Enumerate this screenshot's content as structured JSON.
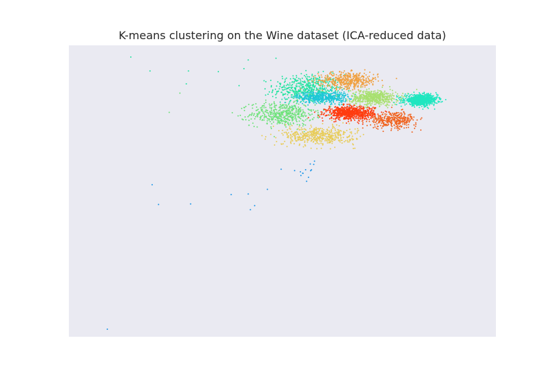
{
  "chart_data": {
    "type": "scatter",
    "title": "K-means clustering on the Wine dataset (ICA-reduced data)",
    "xlabel": "",
    "ylabel": "",
    "xlim": [
      -5.0,
      5.0
    ],
    "ylim": [
      -3.8,
      1.2
    ],
    "grid": false,
    "axes_visible": false,
    "background_color": "#eaeaf2",
    "clusters": [
      {
        "color": "#22e3a0",
        "center": [
          0.6,
          0.45
        ],
        "spread": [
          0.8,
          0.25
        ],
        "n": 520,
        "extra_points": [
          {
            "x": -3.55,
            "y": 1.0
          },
          {
            "x": -3.1,
            "y": 0.76
          },
          {
            "x": -2.2,
            "y": 0.76
          },
          {
            "x": -2.25,
            "y": 0.54
          },
          {
            "x": -1.5,
            "y": 0.75
          },
          {
            "x": -0.9,
            "y": 0.8
          },
          {
            "x": -0.8,
            "y": 0.95
          },
          {
            "x": -0.15,
            "y": 0.98
          }
        ]
      },
      {
        "color": "#6ee27a",
        "center": [
          0.0,
          0.02
        ],
        "spread": [
          0.75,
          0.2
        ],
        "n": 480,
        "extra_points": [
          {
            "x": -2.65,
            "y": 0.05
          },
          {
            "x": -2.4,
            "y": 0.38
          }
        ]
      },
      {
        "color": "#f0a040",
        "center": [
          1.55,
          0.6
        ],
        "spread": [
          0.7,
          0.14
        ],
        "n": 430,
        "extra_points": []
      },
      {
        "color": "#1ec6d8",
        "center": [
          0.95,
          0.31
        ],
        "spread": [
          0.6,
          0.1
        ],
        "n": 450,
        "extra_points": []
      },
      {
        "color": "#a8e070",
        "center": [
          2.15,
          0.3
        ],
        "spread": [
          0.55,
          0.13
        ],
        "n": 560,
        "extra_points": []
      },
      {
        "color": "#20e6c0",
        "center": [
          3.25,
          0.26
        ],
        "spread": [
          0.38,
          0.09
        ],
        "n": 820,
        "extra_points": []
      },
      {
        "color": "#ff3c10",
        "center": [
          1.6,
          0.04
        ],
        "spread": [
          0.55,
          0.11
        ],
        "n": 760,
        "extra_points": []
      },
      {
        "color": "#f06420",
        "center": [
          2.6,
          -0.08
        ],
        "spread": [
          0.55,
          0.14
        ],
        "n": 360,
        "extra_points": []
      },
      {
        "color": "#e8cc58",
        "center": [
          0.85,
          -0.35
        ],
        "spread": [
          0.85,
          0.16
        ],
        "n": 480,
        "extra_points": []
      },
      {
        "color": "#1e96e8",
        "center": [
          0.45,
          -0.95
        ],
        "spread": [
          0.3,
          0.15
        ],
        "n": 14,
        "extra_points": [
          {
            "x": -3.05,
            "y": -1.19
          },
          {
            "x": -2.9,
            "y": -1.53
          },
          {
            "x": -2.15,
            "y": -1.52
          },
          {
            "x": -1.2,
            "y": -1.36
          },
          {
            "x": -0.8,
            "y": -1.35
          },
          {
            "x": -0.75,
            "y": -1.62
          },
          {
            "x": -0.65,
            "y": -1.55
          },
          {
            "x": -0.35,
            "y": -1.27
          },
          {
            "x": -4.1,
            "y": -3.67
          }
        ]
      }
    ]
  }
}
